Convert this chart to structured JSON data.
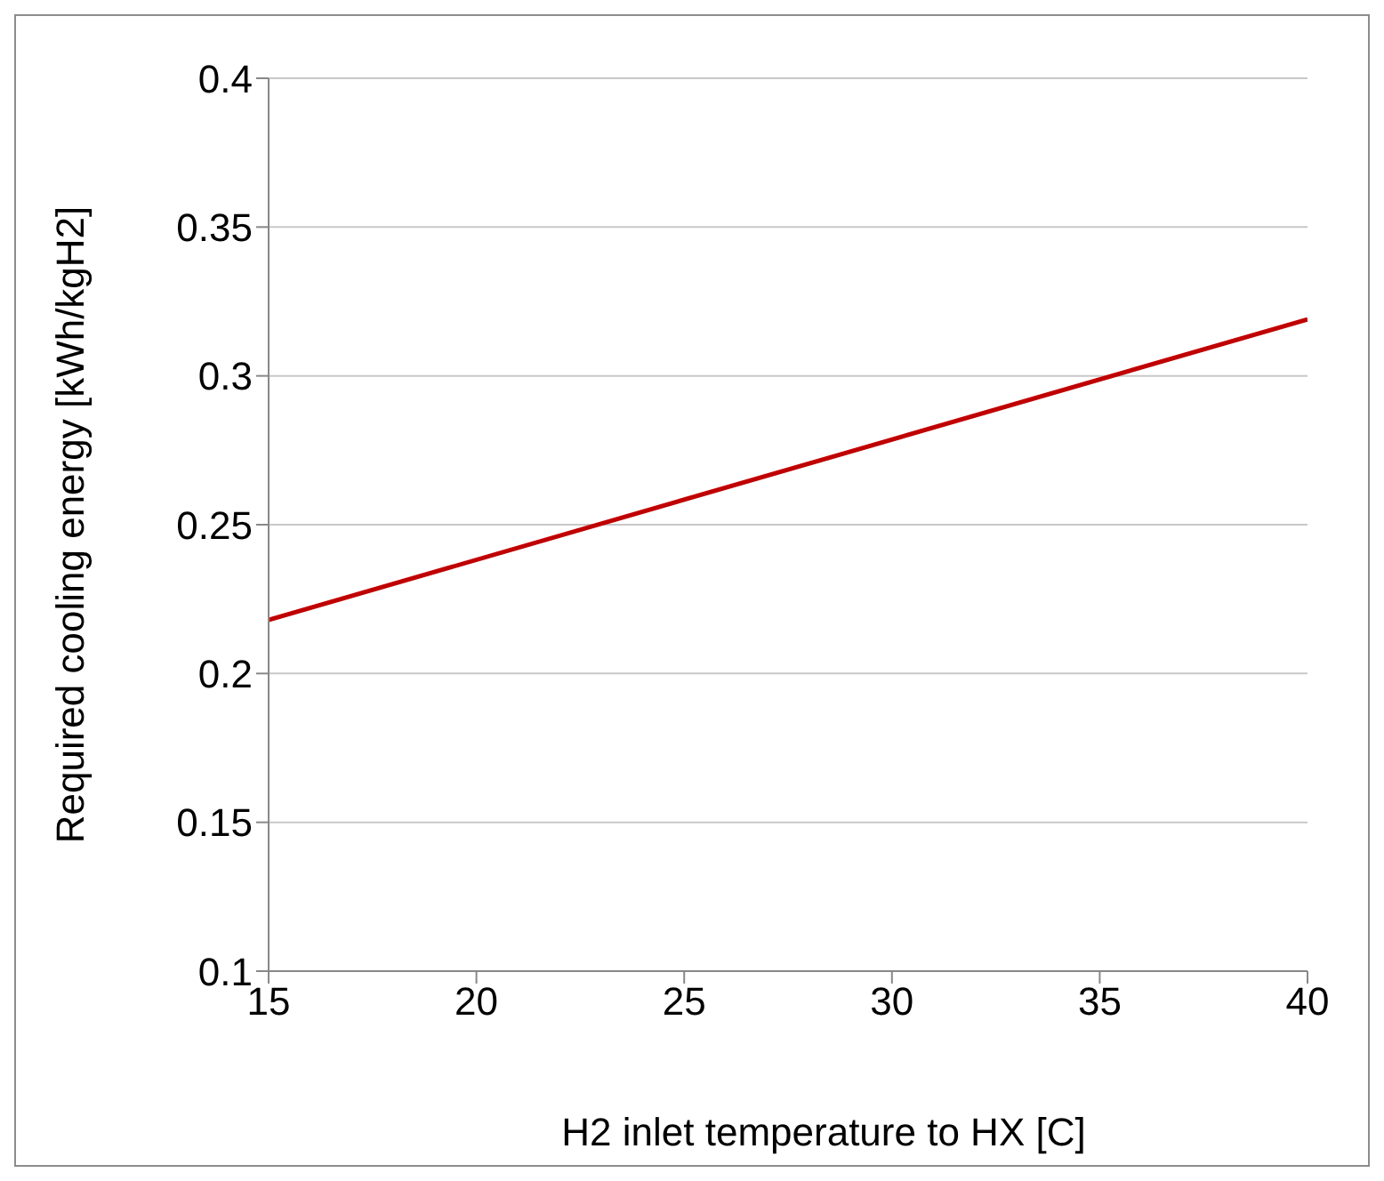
{
  "chart_data": {
    "type": "line",
    "xlabel": "H2 inlet temperature to HX [C]",
    "ylabel": "Required cooling energy [kWh/kgH2]",
    "x": [
      15,
      40
    ],
    "series": [
      {
        "color": "#c00000",
        "values": [
          0.218,
          0.319
        ]
      }
    ],
    "xlim": [
      15,
      40
    ],
    "xticks": [
      15,
      20,
      25,
      30,
      35,
      40
    ],
    "ylim": [
      0.1,
      0.4
    ],
    "yticks": [
      0.1,
      0.15,
      0.2,
      0.25,
      0.3,
      0.35,
      0.4
    ],
    "grid": "y",
    "legend": false,
    "marker": "none",
    "line_style": "solid"
  }
}
